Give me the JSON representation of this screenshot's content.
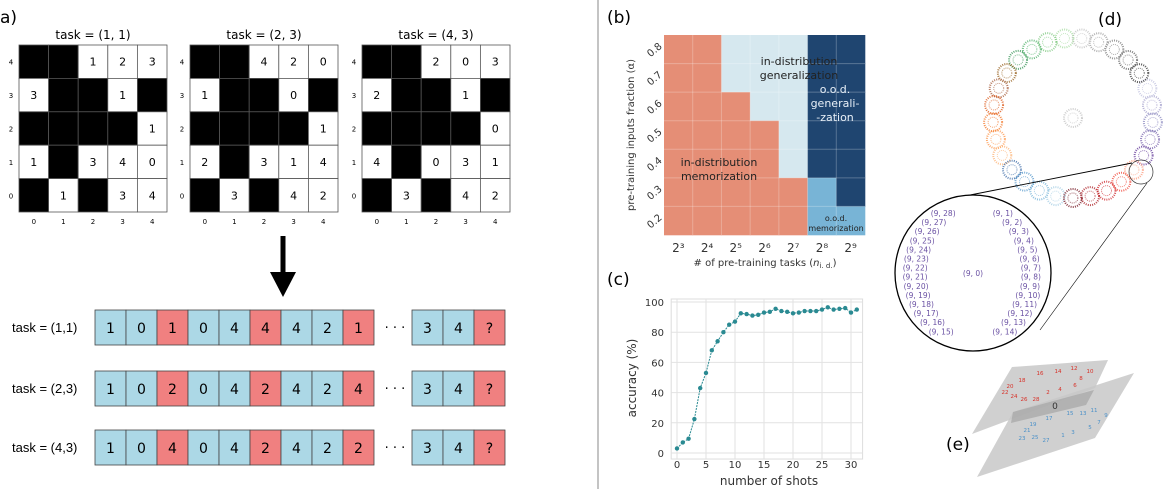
{
  "panel_labels": {
    "a": "a)",
    "b": "(b)",
    "c": "(c)",
    "d": "(d)",
    "e": "(e)"
  },
  "panel_a": {
    "grids": [
      {
        "title": "task  = (1, 1)",
        "cells": [
          [
            null,
            null,
            1,
            2,
            3
          ],
          [
            3,
            null,
            null,
            1,
            null
          ],
          [
            null,
            null,
            null,
            null,
            1
          ],
          [
            1,
            null,
            3,
            4,
            0
          ],
          [
            null,
            1,
            null,
            3,
            4
          ]
        ]
      },
      {
        "title": "task  = (2, 3)",
        "cells": [
          [
            null,
            null,
            4,
            2,
            0
          ],
          [
            1,
            null,
            null,
            0,
            null
          ],
          [
            null,
            null,
            null,
            null,
            1
          ],
          [
            2,
            null,
            3,
            1,
            4
          ],
          [
            null,
            3,
            null,
            4,
            2
          ]
        ]
      },
      {
        "title": "task  = (4, 3)",
        "cells": [
          [
            null,
            null,
            2,
            0,
            3
          ],
          [
            2,
            null,
            null,
            1,
            null
          ],
          [
            null,
            null,
            null,
            null,
            0
          ],
          [
            4,
            null,
            0,
            3,
            1
          ],
          [
            null,
            3,
            null,
            4,
            2
          ]
        ]
      }
    ],
    "row_ticks": [
      "4",
      "3",
      "2",
      "1",
      "0"
    ],
    "col_ticks": [
      "0",
      "1",
      "2",
      "3",
      "4"
    ],
    "sequences": [
      {
        "label": "task = (1,1)",
        "tokens": [
          "1",
          "0",
          "1",
          "0",
          "4",
          "4",
          "4",
          "2",
          "1"
        ],
        "tail": [
          "3",
          "4",
          "?"
        ]
      },
      {
        "label": "task = (2,3)",
        "tokens": [
          "1",
          "0",
          "2",
          "0",
          "4",
          "2",
          "4",
          "2",
          "4"
        ],
        "tail": [
          "3",
          "4",
          "?"
        ]
      },
      {
        "label": "task = (4,3)",
        "tokens": [
          "1",
          "0",
          "4",
          "0",
          "4",
          "2",
          "4",
          "2",
          "2"
        ],
        "tail": [
          "3",
          "4",
          "?"
        ]
      }
    ],
    "ellipsis": "· · ·",
    "colors": {
      "input": "#acd8e6",
      "output": "#f08080",
      "masked": "#000000"
    }
  },
  "chart_data": [
    {
      "type": "heatmap",
      "x_ticks": [
        "2³",
        "2⁴",
        "2⁵",
        "2⁶",
        "2⁷",
        "2⁸",
        "2⁹"
      ],
      "y_ticks": [
        "0.8",
        "0.7",
        "0.6",
        "0.5",
        "0.4",
        "0.3",
        "0.2"
      ],
      "xlabel": "# of pre-training tasks (",
      "xlabel_var": "n",
      "xlabel_sub": "i. d.",
      "xlabel_end": ")",
      "ylabel": "pre-training inputs fraction (α)",
      "phases": [
        [
          "M",
          "M",
          "G",
          "G",
          "G",
          "O",
          "O"
        ],
        [
          "M",
          "M",
          "G",
          "G",
          "G",
          "O",
          "O"
        ],
        [
          "M",
          "M",
          "M",
          "G",
          "G",
          "O",
          "O"
        ],
        [
          "M",
          "M",
          "M",
          "M",
          "G",
          "O",
          "O"
        ],
        [
          "M",
          "M",
          "M",
          "M",
          "G",
          "O",
          "O"
        ],
        [
          "M",
          "M",
          "M",
          "M",
          "M",
          "P",
          "O"
        ],
        [
          "M",
          "M",
          "M",
          "M",
          "M",
          "P",
          "P"
        ]
      ],
      "phase_colors": {
        "M": "#e58e76",
        "G": "#d6e8ef",
        "O": "#1f4570",
        "P": "#78b4d6"
      },
      "regions": {
        "G": [
          "in-distribution",
          "generalization"
        ],
        "O": [
          "o.o.d.",
          "generali-",
          "-zation"
        ],
        "M": [
          "in-distribution",
          "memorization"
        ],
        "P": [
          "o.o.d.",
          "memorization"
        ]
      }
    },
    {
      "type": "line",
      "x": [
        0,
        1,
        2,
        3,
        4,
        5,
        6,
        7,
        8,
        9,
        10,
        11,
        12,
        13,
        14,
        15,
        16,
        17,
        18,
        19,
        20,
        21,
        22,
        23,
        24,
        25,
        26,
        27,
        28,
        29,
        30,
        31
      ],
      "values": [
        3,
        7,
        9.5,
        22.5,
        43,
        53,
        68,
        74,
        80,
        85,
        87,
        92.5,
        92,
        91,
        91.5,
        93,
        93.5,
        95.5,
        94,
        93.5,
        92.5,
        93,
        94,
        94,
        94,
        95,
        96.5,
        95,
        95.5,
        96,
        93,
        95
      ],
      "xlabel": "number of shots",
      "ylabel": "accuracy (%)",
      "xlim": [
        -1,
        32
      ],
      "ylim": [
        0,
        100
      ],
      "x_ticks": [
        "0",
        "5",
        "10",
        "15",
        "20",
        "25",
        "30"
      ],
      "y_ticks": [
        "0",
        "20",
        "40",
        "60",
        "80",
        "100"
      ],
      "grid": true,
      "color": "#2a8a92"
    }
  ],
  "panel_d": {
    "cluster_colors": [
      "#54278f",
      "#6a51a3",
      "#807dba",
      "#9e9ac8",
      "#bcbddc",
      "#252525",
      "#525252",
      "#737373",
      "#969696",
      "#bdbdbd",
      "#a1d99b",
      "#74c476",
      "#41ab5d",
      "#238b45",
      "#8c510a",
      "#a0522d",
      "#d94801",
      "#f16913",
      "#fd8d3c",
      "#fdae6b",
      "#2c5fa0",
      "#4a90c8",
      "#6baed6",
      "#9ecae1",
      "#67000d",
      "#a50f15",
      "#cb181d",
      "#ef3b2c",
      "#fc9272"
    ],
    "center_color": "#bdbdbd",
    "inset_labels": [
      "(9, 0)",
      "(9, 1)",
      "(9, 2)",
      "(9, 3)",
      "(9, 4)",
      "(9, 5)",
      "(9, 6)",
      "(9, 7)",
      "(9, 8)",
      "(9, 9)",
      "(9, 10)",
      "(9, 11)",
      "(9, 12)",
      "(9, 13)",
      "(9, 14)",
      "(9, 15)",
      "(9, 16)",
      "(9, 17)",
      "(9, 18)",
      "(9, 19)",
      "(9, 20)",
      "(9, 21)",
      "(9, 22)",
      "(9, 23)",
      "(9, 24)",
      "(9, 25)",
      "(9, 26)",
      "(9, 27)",
      "(9, 28)"
    ],
    "inset_color": "#6a51a3"
  },
  "panel_e": {
    "labels": [
      "0",
      "1",
      "2",
      "3",
      "4",
      "5",
      "6",
      "7",
      "8",
      "9",
      "10",
      "11",
      "12",
      "13",
      "14",
      "15",
      "16",
      "17",
      "18",
      "19",
      "20",
      "21",
      "22",
      "23",
      "24",
      "25",
      "26",
      "27",
      "28"
    ],
    "even_color": "#d73027",
    "odd_color": "#4a90c8"
  }
}
